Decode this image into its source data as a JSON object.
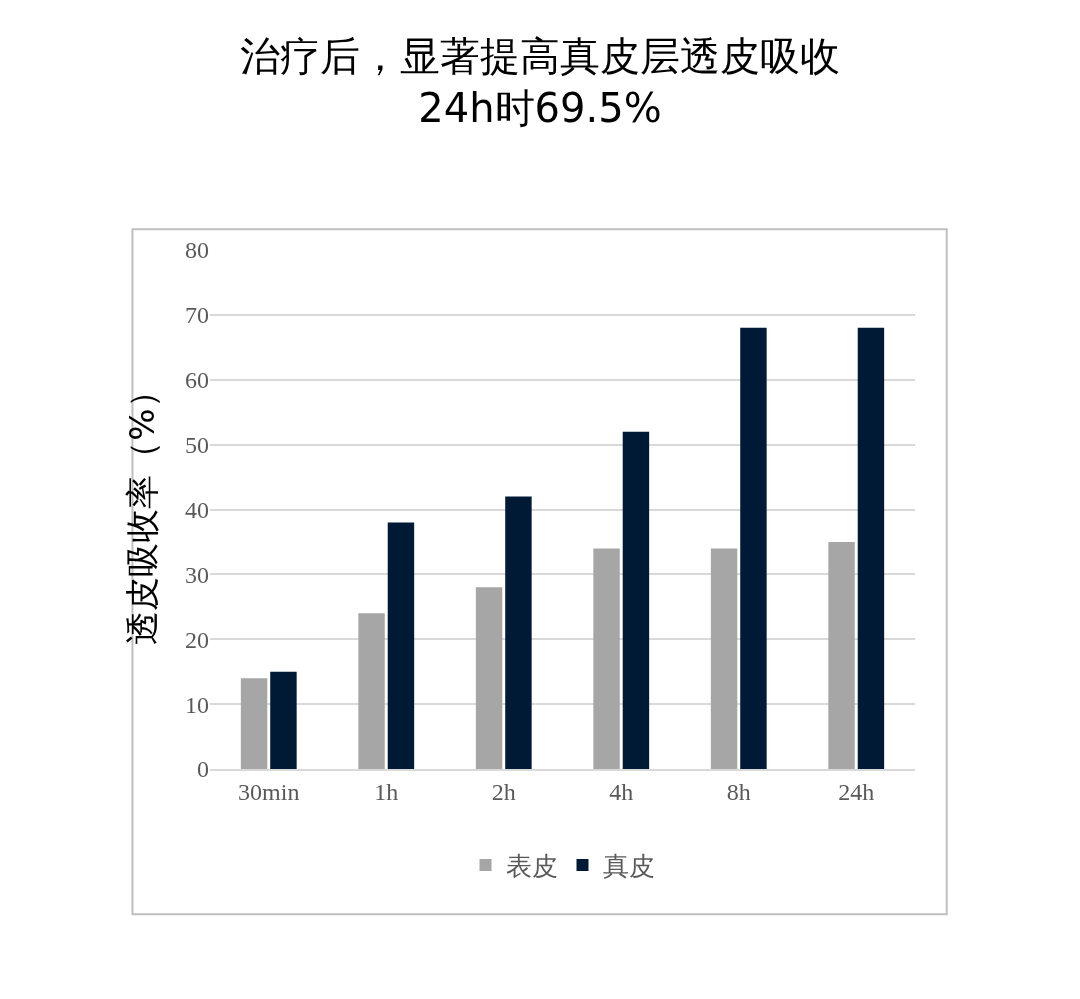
{
  "chart_data": {
    "type": "bar",
    "title": "治疗后，显著提高真皮层透皮吸收\n24h时69.5%",
    "ylabel": "透皮吸收率（%）",
    "categories": [
      "30min",
      "1h",
      "2h",
      "4h",
      "8h",
      "24h"
    ],
    "series": [
      {
        "name": "表皮",
        "color": "#a6a6a6",
        "values": [
          14,
          24,
          28,
          34,
          34,
          35
        ]
      },
      {
        "name": "真皮",
        "color": "#001a35",
        "values": [
          15,
          38,
          42,
          52,
          68,
          68
        ]
      }
    ],
    "ylim": [
      0,
      80
    ],
    "yticks": [
      0,
      10,
      20,
      30,
      40,
      50,
      60,
      70,
      80
    ],
    "grid": "y",
    "legend": "bottom"
  }
}
